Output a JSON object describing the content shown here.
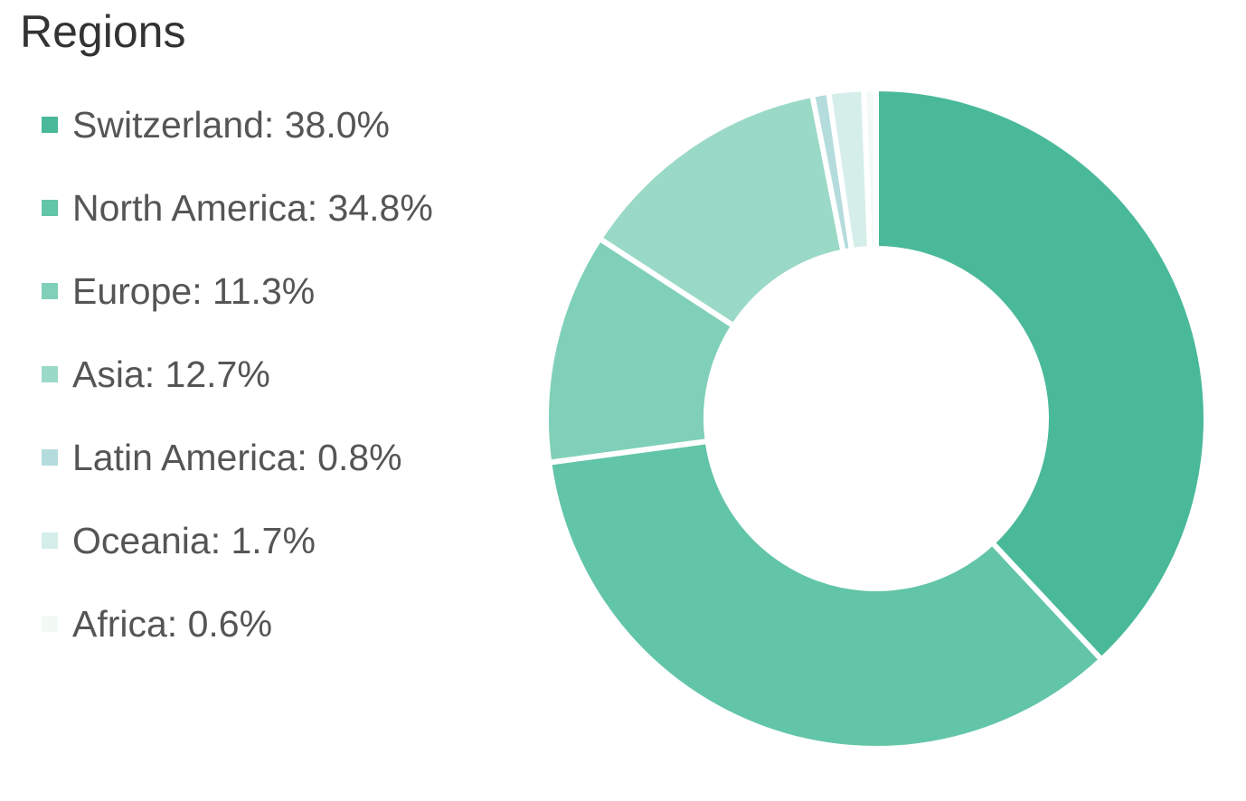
{
  "chart_data": {
    "type": "pie",
    "title": "Regions",
    "donut": true,
    "legend_position": "left",
    "slices": [
      {
        "label": "Switzerland",
        "percent_label": "38.0%",
        "value": 38.0,
        "color": "#49b999"
      },
      {
        "label": "North America",
        "percent_label": "34.8%",
        "value": 34.8,
        "color": "#62c5a8"
      },
      {
        "label": "Europe",
        "percent_label": "11.3%",
        "value": 11.3,
        "color": "#80d0b9"
      },
      {
        "label": "Asia",
        "percent_label": "12.7%",
        "value": 12.7,
        "color": "#9bd9c7"
      },
      {
        "label": "Latin America",
        "percent_label": "0.8%",
        "value": 0.8,
        "color": "#b5dcdc"
      },
      {
        "label": "Oceania",
        "percent_label": "1.7%",
        "value": 1.7,
        "color": "#d5eeea"
      },
      {
        "label": "Africa",
        "percent_label": "0.6%",
        "value": 0.6,
        "color": "#f3faf6"
      }
    ]
  }
}
